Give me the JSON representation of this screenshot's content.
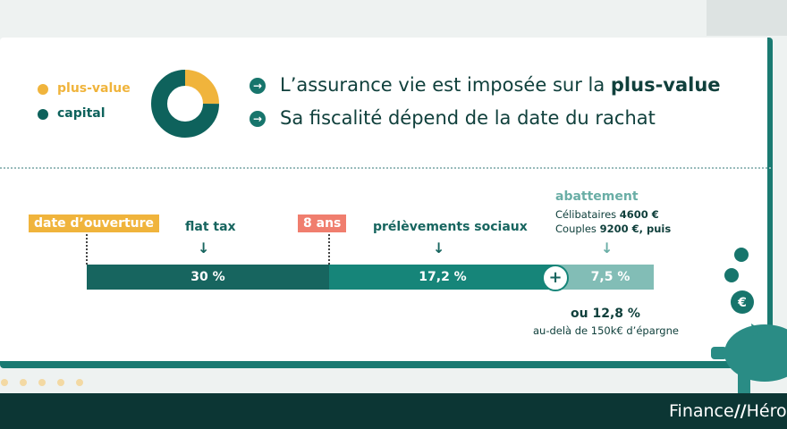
{
  "legend": {
    "items": [
      {
        "label": "plus-value",
        "color": "#f0b43c"
      },
      {
        "label": "capital",
        "color": "#0e625c"
      }
    ]
  },
  "donut": {
    "segments": [
      {
        "label": "plus-value",
        "value": 25,
        "color": "#f0b43c"
      },
      {
        "label": "capital",
        "value": 75,
        "color": "#0e625c"
      }
    ]
  },
  "bullets": [
    {
      "text": "L’assurance vie est imposée sur la ",
      "bold": "plus-value"
    },
    {
      "text": "Sa fiscalité dépend de la date du rachat"
    }
  ],
  "timeline": {
    "start_label": "date d’ouverture",
    "flat_tax": "flat tax",
    "years_label": "8 ans",
    "social": "prélèvements sociaux",
    "abattement": {
      "title": "abattement",
      "single": "Célibataires",
      "single_amount": "4600 €",
      "couple": "Couples",
      "couple_amount": "9200 €, puis"
    },
    "segments": [
      {
        "label": "30 %",
        "color": "#17655f"
      },
      {
        "label": "17,2 %",
        "color": "#168579"
      },
      {
        "label": "7,5 %",
        "color": "#82bdb6"
      }
    ],
    "plus": "+",
    "alt_rate": "ou 12,8 %",
    "alt_note": "au-delà de 150k€ d’épargne"
  },
  "footer": {
    "brand_left": "Finance",
    "brand_right": "Héros"
  }
}
